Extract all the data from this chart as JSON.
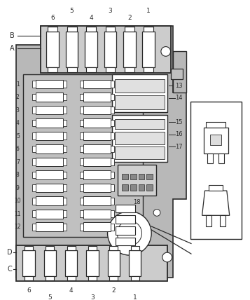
{
  "bg_color": "#ffffff",
  "line_color": "#2a2a2a",
  "board_color": "#c8c8c8",
  "fuse_color": "#ffffff",
  "top_labels": [
    "6",
    "5",
    "4",
    "3",
    "2",
    "1"
  ],
  "bottom_labels": [
    "6",
    "5",
    "4",
    "3",
    "2",
    "1"
  ],
  "left_labels": [
    "1",
    "2",
    "3",
    "4",
    "5",
    "6",
    "7",
    "8",
    "9",
    "10",
    "11",
    "12"
  ],
  "right_labels": [
    "13",
    "14",
    "15",
    "16",
    "17"
  ],
  "label_18": "18",
  "corner_labels_top": [
    "B",
    "A"
  ],
  "corner_labels_bot": [
    "D",
    "C"
  ]
}
